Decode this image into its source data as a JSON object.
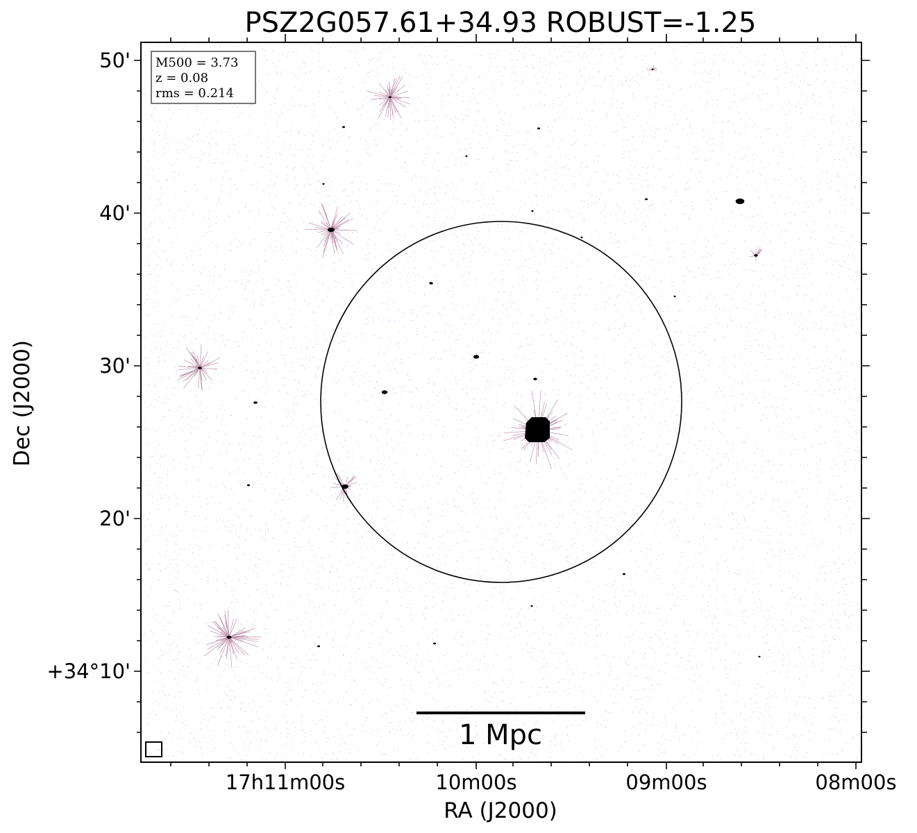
{
  "figure": {
    "title": "PSZ2G057.61+34.93 ROBUST=-1.25",
    "xlabel": "RA (J2000)",
    "ylabel": "Dec (J2000)",
    "x_ticks": [
      "17h11m00s",
      "10m00s",
      "09m00s",
      "08m00s"
    ],
    "y_ticks": [
      "50'",
      "40'",
      "30'",
      "20'",
      "+34°10'"
    ],
    "info_box": [
      "M500 = 3.73",
      "z = 0.08",
      "rms = 0.214"
    ],
    "scale_bar_label": "1 Mpc",
    "colors": {
      "background": "#ffffff",
      "noise": "#5b7fc4",
      "source_core": "#000000",
      "source_halo": "#8a3a6a",
      "circle": "#000000"
    }
  }
}
